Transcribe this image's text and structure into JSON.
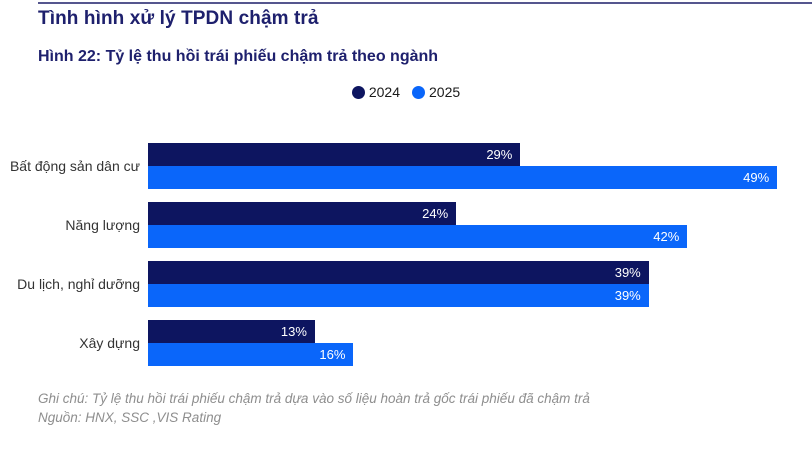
{
  "page": {
    "title": "Tình hình xử lý TPDN chậm trả",
    "figure_title": "Hình 22: Tỷ lệ thu hồi trái phiếu chậm trả theo ngành"
  },
  "legend": [
    {
      "label": "2024",
      "color": "#0d1560"
    },
    {
      "label": "2025",
      "color": "#0a66fa"
    }
  ],
  "chart_data": {
    "type": "bar",
    "orientation": "horizontal",
    "title": "Hình 22: Tỷ lệ thu hồi trái phiếu chậm trả theo ngành",
    "categories": [
      "Bất động sản dân cư",
      "Năng lượng",
      "Du lịch, nghỉ dưỡng",
      "Xây dựng"
    ],
    "series": [
      {
        "name": "2024",
        "color": "#0d1560",
        "values": [
          29,
          24,
          39,
          13
        ]
      },
      {
        "name": "2025",
        "color": "#0a66fa",
        "values": [
          49,
          42,
          39,
          16
        ]
      }
    ],
    "value_suffix": "%",
    "xlim": [
      0,
      50
    ],
    "grid": false,
    "legend_position": "top-center",
    "value_labels": "inside-end"
  },
  "footer": {
    "note": "Ghi chú: Tỷ lệ thu hồi trái phiếu chậm trả dựa vào số liệu hoàn trả gốc trái phiếu đã chậm trả",
    "source": "Nguồn: HNX, SSC ,VIS Rating"
  },
  "colors": {
    "title": "#1e206d",
    "rule": "#55568e",
    "category_label": "#333333",
    "value_label": "#ffffff",
    "footer_text": "#8e8e8e",
    "background": "#ffffff"
  }
}
